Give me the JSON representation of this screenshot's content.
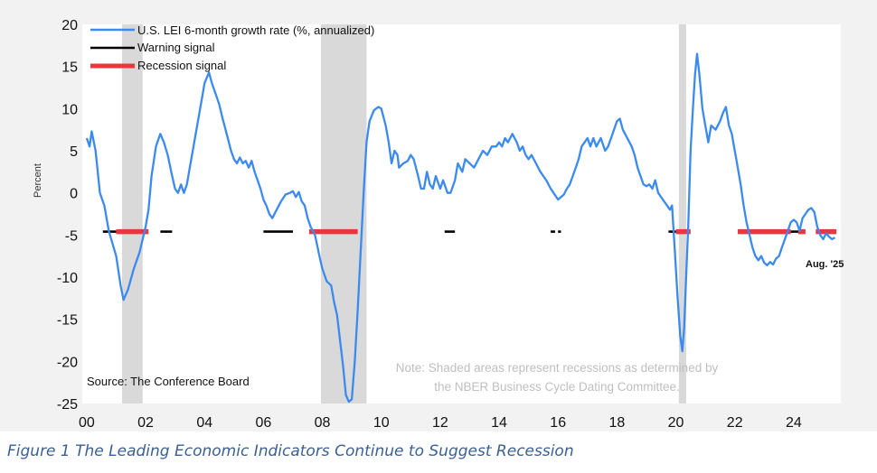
{
  "chart_data": {
    "type": "line",
    "ylabel": "Percent",
    "ylim": [
      -25,
      20
    ],
    "yticks": [
      20,
      15,
      10,
      5,
      0,
      -5,
      -10,
      -15,
      -20,
      -25
    ],
    "xlim": [
      1999.85,
      2025.6
    ],
    "xticks": [
      {
        "x": 2000,
        "label": "00"
      },
      {
        "x": 2002,
        "label": "02"
      },
      {
        "x": 2004,
        "label": "04"
      },
      {
        "x": 2006,
        "label": "06"
      },
      {
        "x": 2008,
        "label": "08"
      },
      {
        "x": 2010,
        "label": "10"
      },
      {
        "x": 2012,
        "label": "12"
      },
      {
        "x": 2014,
        "label": "14"
      },
      {
        "x": 2016,
        "label": "16"
      },
      {
        "x": 2018,
        "label": "18"
      },
      {
        "x": 2020,
        "label": "20"
      },
      {
        "x": 2022,
        "label": "22"
      },
      {
        "x": 2024,
        "label": "24"
      }
    ],
    "legend": [
      {
        "label": "U.S. LEI 6-month growth rate (%, annualized)",
        "color": "#3b8af0",
        "kind": "line"
      },
      {
        "label": "Warning signal",
        "color": "#000000",
        "kind": "warning"
      },
      {
        "label": "Recession signal",
        "color": "#e8383d",
        "kind": "recession"
      }
    ],
    "recessions": [
      [
        2001.2,
        2001.9
      ],
      [
        2007.95,
        2009.5
      ],
      [
        2020.1,
        2020.35
      ]
    ],
    "signal_level": -4.6,
    "warning_periods": [
      [
        2000.55,
        2001.0
      ],
      [
        2002.5,
        2002.9
      ],
      [
        2006.0,
        2007.0
      ],
      [
        2012.15,
        2012.5
      ],
      [
        2015.75,
        2015.9
      ],
      [
        2016.0,
        2016.1
      ],
      [
        2019.75,
        2020.0
      ],
      [
        2023.9,
        2024.2
      ]
    ],
    "recession_periods": [
      [
        2001.0,
        2002.1
      ],
      [
        2007.55,
        2009.2
      ],
      [
        2020.0,
        2020.5
      ],
      [
        2022.1,
        2023.9
      ],
      [
        2024.15,
        2024.4
      ],
      [
        2024.75,
        2025.45
      ]
    ],
    "series": [
      {
        "name": "U.S. LEI 6-month growth rate (%, annualized)",
        "color": "#3b8af0",
        "points": [
          [
            2000.0,
            6.5
          ],
          [
            2000.1,
            5.5
          ],
          [
            2000.17,
            7.3
          ],
          [
            2000.3,
            5.0
          ],
          [
            2000.45,
            0.0
          ],
          [
            2000.6,
            -1.5
          ],
          [
            2000.75,
            -4.5
          ],
          [
            2001.0,
            -7.5
          ],
          [
            2001.15,
            -11.0
          ],
          [
            2001.25,
            -12.7
          ],
          [
            2001.4,
            -11.5
          ],
          [
            2001.6,
            -9.0
          ],
          [
            2001.8,
            -7.0
          ],
          [
            2002.0,
            -4.0
          ],
          [
            2002.1,
            -2.0
          ],
          [
            2002.2,
            2.0
          ],
          [
            2002.35,
            5.5
          ],
          [
            2002.5,
            7.0
          ],
          [
            2002.62,
            6.0
          ],
          [
            2002.75,
            4.5
          ],
          [
            2002.9,
            2.0
          ],
          [
            2003.0,
            0.5
          ],
          [
            2003.1,
            0.0
          ],
          [
            2003.2,
            1.0
          ],
          [
            2003.3,
            0.0
          ],
          [
            2003.4,
            1.0
          ],
          [
            2003.5,
            3.0
          ],
          [
            2003.6,
            5.0
          ],
          [
            2003.75,
            8.0
          ],
          [
            2003.9,
            11.0
          ],
          [
            2004.0,
            13.0
          ],
          [
            2004.15,
            14.3
          ],
          [
            2004.25,
            13.0
          ],
          [
            2004.4,
            11.5
          ],
          [
            2004.5,
            10.5
          ],
          [
            2004.6,
            9.0
          ],
          [
            2004.75,
            7.0
          ],
          [
            2004.9,
            5.0
          ],
          [
            2005.0,
            4.0
          ],
          [
            2005.1,
            3.5
          ],
          [
            2005.2,
            4.2
          ],
          [
            2005.3,
            3.5
          ],
          [
            2005.4,
            3.8
          ],
          [
            2005.5,
            3.0
          ],
          [
            2005.6,
            3.8
          ],
          [
            2005.7,
            2.5
          ],
          [
            2005.8,
            1.5
          ],
          [
            2005.9,
            0.5
          ],
          [
            2006.0,
            -0.8
          ],
          [
            2006.1,
            -1.5
          ],
          [
            2006.2,
            -2.5
          ],
          [
            2006.3,
            -3.0
          ],
          [
            2006.45,
            -2.0
          ],
          [
            2006.6,
            -1.0
          ],
          [
            2006.75,
            -0.2
          ],
          [
            2006.9,
            0.0
          ],
          [
            2007.0,
            0.2
          ],
          [
            2007.1,
            -0.5
          ],
          [
            2007.2,
            0.1
          ],
          [
            2007.3,
            -1.0
          ],
          [
            2007.4,
            -1.5
          ],
          [
            2007.5,
            -3.0
          ],
          [
            2007.6,
            -4.0
          ],
          [
            2007.75,
            -5.0
          ],
          [
            2007.9,
            -7.5
          ],
          [
            2008.0,
            -9.0
          ],
          [
            2008.15,
            -10.5
          ],
          [
            2008.3,
            -11.0
          ],
          [
            2008.4,
            -13.0
          ],
          [
            2008.5,
            -14.5
          ],
          [
            2008.6,
            -17.5
          ],
          [
            2008.7,
            -20.5
          ],
          [
            2008.8,
            -24.0
          ],
          [
            2008.9,
            -24.8
          ],
          [
            2009.0,
            -24.5
          ],
          [
            2009.1,
            -20.0
          ],
          [
            2009.2,
            -14.0
          ],
          [
            2009.3,
            -7.0
          ],
          [
            2009.4,
            0.0
          ],
          [
            2009.5,
            6.0
          ],
          [
            2009.6,
            8.5
          ],
          [
            2009.75,
            9.8
          ],
          [
            2009.9,
            10.2
          ],
          [
            2010.0,
            10.0
          ],
          [
            2010.15,
            8.0
          ],
          [
            2010.25,
            6.0
          ],
          [
            2010.35,
            3.5
          ],
          [
            2010.45,
            5.0
          ],
          [
            2010.55,
            4.5
          ],
          [
            2010.6,
            3.0
          ],
          [
            2010.75,
            3.5
          ],
          [
            2010.9,
            3.8
          ],
          [
            2011.0,
            4.5
          ],
          [
            2011.1,
            4.0
          ],
          [
            2011.25,
            2.0
          ],
          [
            2011.35,
            0.5
          ],
          [
            2011.45,
            0.5
          ],
          [
            2011.55,
            2.5
          ],
          [
            2011.65,
            1.0
          ],
          [
            2011.75,
            0.5
          ],
          [
            2011.85,
            2.0
          ],
          [
            2012.0,
            0.5
          ],
          [
            2012.1,
            1.5
          ],
          [
            2012.25,
            0.0
          ],
          [
            2012.35,
            0.0
          ],
          [
            2012.5,
            1.5
          ],
          [
            2012.6,
            3.5
          ],
          [
            2012.75,
            2.5
          ],
          [
            2012.85,
            4.0
          ],
          [
            2013.0,
            3.5
          ],
          [
            2013.15,
            3.0
          ],
          [
            2013.3,
            4.0
          ],
          [
            2013.45,
            5.0
          ],
          [
            2013.6,
            4.5
          ],
          [
            2013.75,
            5.5
          ],
          [
            2013.9,
            5.5
          ],
          [
            2014.0,
            6.0
          ],
          [
            2014.1,
            5.5
          ],
          [
            2014.2,
            6.5
          ],
          [
            2014.3,
            6.0
          ],
          [
            2014.45,
            7.0
          ],
          [
            2014.6,
            6.0
          ],
          [
            2014.7,
            5.0
          ],
          [
            2014.8,
            5.5
          ],
          [
            2014.9,
            4.5
          ],
          [
            2015.0,
            4.0
          ],
          [
            2015.1,
            4.5
          ],
          [
            2015.25,
            3.5
          ],
          [
            2015.4,
            2.5
          ],
          [
            2015.5,
            2.0
          ],
          [
            2015.6,
            1.5
          ],
          [
            2015.75,
            0.5
          ],
          [
            2015.85,
            0.0
          ],
          [
            2016.0,
            -0.8
          ],
          [
            2016.1,
            -0.5
          ],
          [
            2016.2,
            -0.2
          ],
          [
            2016.3,
            0.5
          ],
          [
            2016.4,
            1.0
          ],
          [
            2016.5,
            2.0
          ],
          [
            2016.6,
            3.0
          ],
          [
            2016.7,
            4.0
          ],
          [
            2016.8,
            5.5
          ],
          [
            2016.9,
            6.0
          ],
          [
            2017.0,
            6.5
          ],
          [
            2017.1,
            5.5
          ],
          [
            2017.2,
            6.5
          ],
          [
            2017.3,
            5.5
          ],
          [
            2017.45,
            6.5
          ],
          [
            2017.6,
            5.0
          ],
          [
            2017.7,
            5.5
          ],
          [
            2017.8,
            6.5
          ],
          [
            2017.9,
            7.5
          ],
          [
            2018.0,
            8.5
          ],
          [
            2018.1,
            8.8
          ],
          [
            2018.2,
            7.5
          ],
          [
            2018.35,
            6.5
          ],
          [
            2018.5,
            5.5
          ],
          [
            2018.6,
            4.5
          ],
          [
            2018.7,
            3.0
          ],
          [
            2018.8,
            2.0
          ],
          [
            2018.9,
            1.0
          ],
          [
            2019.0,
            0.8
          ],
          [
            2019.1,
            1.0
          ],
          [
            2019.2,
            0.5
          ],
          [
            2019.3,
            1.5
          ],
          [
            2019.4,
            0.0
          ],
          [
            2019.5,
            -0.5
          ],
          [
            2019.6,
            -1.0
          ],
          [
            2019.7,
            -1.5
          ],
          [
            2019.8,
            -2.0
          ],
          [
            2019.87,
            -1.5
          ],
          [
            2019.95,
            -6.0
          ],
          [
            2020.05,
            -12.0
          ],
          [
            2020.15,
            -17.0
          ],
          [
            2020.22,
            -18.8
          ],
          [
            2020.28,
            -16.0
          ],
          [
            2020.35,
            -10.0
          ],
          [
            2020.42,
            -4.0
          ],
          [
            2020.5,
            5.0
          ],
          [
            2020.58,
            10.0
          ],
          [
            2020.65,
            14.0
          ],
          [
            2020.72,
            16.5
          ],
          [
            2020.8,
            14.0
          ],
          [
            2020.9,
            10.0
          ],
          [
            2021.0,
            8.0
          ],
          [
            2021.1,
            6.0
          ],
          [
            2021.2,
            8.0
          ],
          [
            2021.35,
            7.5
          ],
          [
            2021.5,
            8.5
          ],
          [
            2021.6,
            9.5
          ],
          [
            2021.7,
            10.2
          ],
          [
            2021.8,
            8.0
          ],
          [
            2021.9,
            7.0
          ],
          [
            2022.0,
            5.0
          ],
          [
            2022.1,
            3.0
          ],
          [
            2022.2,
            1.0
          ],
          [
            2022.3,
            -1.5
          ],
          [
            2022.4,
            -3.5
          ],
          [
            2022.5,
            -5.0
          ],
          [
            2022.6,
            -6.5
          ],
          [
            2022.7,
            -7.5
          ],
          [
            2022.8,
            -8.0
          ],
          [
            2022.9,
            -7.5
          ],
          [
            2023.0,
            -8.3
          ],
          [
            2023.1,
            -8.6
          ],
          [
            2023.2,
            -8.2
          ],
          [
            2023.3,
            -8.5
          ],
          [
            2023.4,
            -7.8
          ],
          [
            2023.5,
            -7.5
          ],
          [
            2023.6,
            -6.5
          ],
          [
            2023.7,
            -5.5
          ],
          [
            2023.8,
            -4.5
          ],
          [
            2023.9,
            -3.5
          ],
          [
            2024.0,
            -3.2
          ],
          [
            2024.1,
            -3.5
          ],
          [
            2024.2,
            -4.5
          ],
          [
            2024.3,
            -3.0
          ],
          [
            2024.4,
            -2.5
          ],
          [
            2024.5,
            -2.0
          ],
          [
            2024.6,
            -1.8
          ],
          [
            2024.7,
            -2.3
          ],
          [
            2024.8,
            -4.0
          ],
          [
            2024.9,
            -5.0
          ],
          [
            2025.0,
            -5.5
          ],
          [
            2025.1,
            -4.8
          ],
          [
            2025.2,
            -5.2
          ],
          [
            2025.3,
            -5.5
          ],
          [
            2025.4,
            -5.3
          ]
        ]
      }
    ],
    "annotations": {
      "end_label": "Aug. '25",
      "source": "Source: The Conference Board",
      "note_line1": "Note: Shaded areas represent recessions as determined by",
      "note_line2": "the NBER Business Cycle Dating Committee."
    }
  },
  "caption": "Figure 1 The Leading Economic Indicators Continue to Suggest Recession"
}
